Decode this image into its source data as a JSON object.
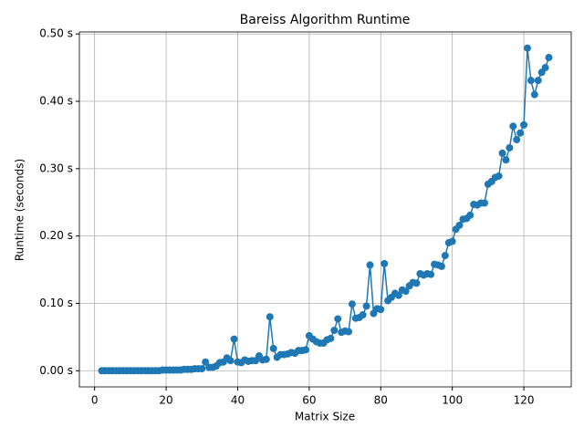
{
  "chart_data": {
    "type": "line",
    "title": "Bareiss Algorithm Runtime",
    "x_label": "Matrix Size",
    "y_label": "Runtime (seconds)",
    "x": [
      2,
      3,
      4,
      5,
      6,
      7,
      8,
      9,
      10,
      11,
      12,
      13,
      14,
      15,
      16,
      17,
      18,
      19,
      20,
      21,
      22,
      23,
      24,
      25,
      26,
      27,
      28,
      29,
      30,
      31,
      32,
      33,
      34,
      35,
      36,
      37,
      38,
      39,
      40,
      41,
      42,
      43,
      44,
      45,
      46,
      47,
      48,
      49,
      50,
      51,
      52,
      53,
      54,
      55,
      56,
      57,
      58,
      59,
      60,
      61,
      62,
      63,
      64,
      65,
      66,
      67,
      68,
      69,
      70,
      71,
      72,
      73,
      74,
      75,
      76,
      77,
      78,
      79,
      80,
      81,
      82,
      83,
      84,
      85,
      86,
      87,
      88,
      89,
      90,
      91,
      92,
      93,
      94,
      95,
      96,
      97,
      98,
      99,
      100,
      101,
      102,
      103,
      104,
      105,
      106,
      107,
      108,
      109,
      110,
      111,
      112,
      113,
      114,
      115,
      116,
      117,
      118,
      119,
      120,
      121,
      122,
      123,
      124,
      125,
      126,
      127
    ],
    "series": [
      {
        "color": "#1f77b4",
        "values": [
          0,
          0,
          0,
          0,
          0,
          0,
          0,
          0,
          0,
          0,
          0,
          0,
          0,
          0,
          0,
          0,
          0,
          0.001,
          0.001,
          0.001,
          0.001,
          0.001,
          0.001,
          0.002,
          0.002,
          0.002,
          0.003,
          0.003,
          0.003,
          0.013,
          0.005,
          0.005,
          0.007,
          0.012,
          0.013,
          0.019,
          0.015,
          0.047,
          0.013,
          0.012,
          0.016,
          0.014,
          0.015,
          0.015,
          0.022,
          0.016,
          0.017,
          0.08,
          0.033,
          0.02,
          0.024,
          0.024,
          0.025,
          0.027,
          0.026,
          0.03,
          0.03,
          0.031,
          0.052,
          0.047,
          0.043,
          0.041,
          0.041,
          0.046,
          0.048,
          0.06,
          0.077,
          0.057,
          0.059,
          0.058,
          0.099,
          0.078,
          0.079,
          0.083,
          0.096,
          0.157,
          0.085,
          0.092,
          0.091,
          0.159,
          0.104,
          0.109,
          0.115,
          0.112,
          0.12,
          0.118,
          0.126,
          0.131,
          0.13,
          0.144,
          0.142,
          0.144,
          0.143,
          0.158,
          0.157,
          0.155,
          0.171,
          0.19,
          0.192,
          0.21,
          0.216,
          0.225,
          0.226,
          0.231,
          0.247,
          0.246,
          0.249,
          0.249,
          0.277,
          0.281,
          0.287,
          0.289,
          0.323,
          0.313,
          0.331,
          0.363,
          0.343,
          0.353,
          0.365,
          0.479,
          0.431,
          0.41,
          0.431,
          0.443,
          0.45,
          0.465
        ]
      }
    ],
    "xlim": [
      -4.25,
      133.25
    ],
    "xticks": [
      0,
      20,
      40,
      60,
      80,
      100,
      120
    ],
    "ylim": [
      -0.024,
      0.503
    ],
    "yticks": [
      {
        "value": 0,
        "label": "0.00 s"
      },
      {
        "value": 0.1,
        "label": "0.10 s"
      },
      {
        "value": 0.2,
        "label": "0.20 s"
      },
      {
        "value": 0.3,
        "label": "0.30 s"
      },
      {
        "value": 0.4,
        "label": "0.40 s"
      },
      {
        "value": 0.5,
        "label": "0.50 s"
      }
    ],
    "grid": true
  }
}
